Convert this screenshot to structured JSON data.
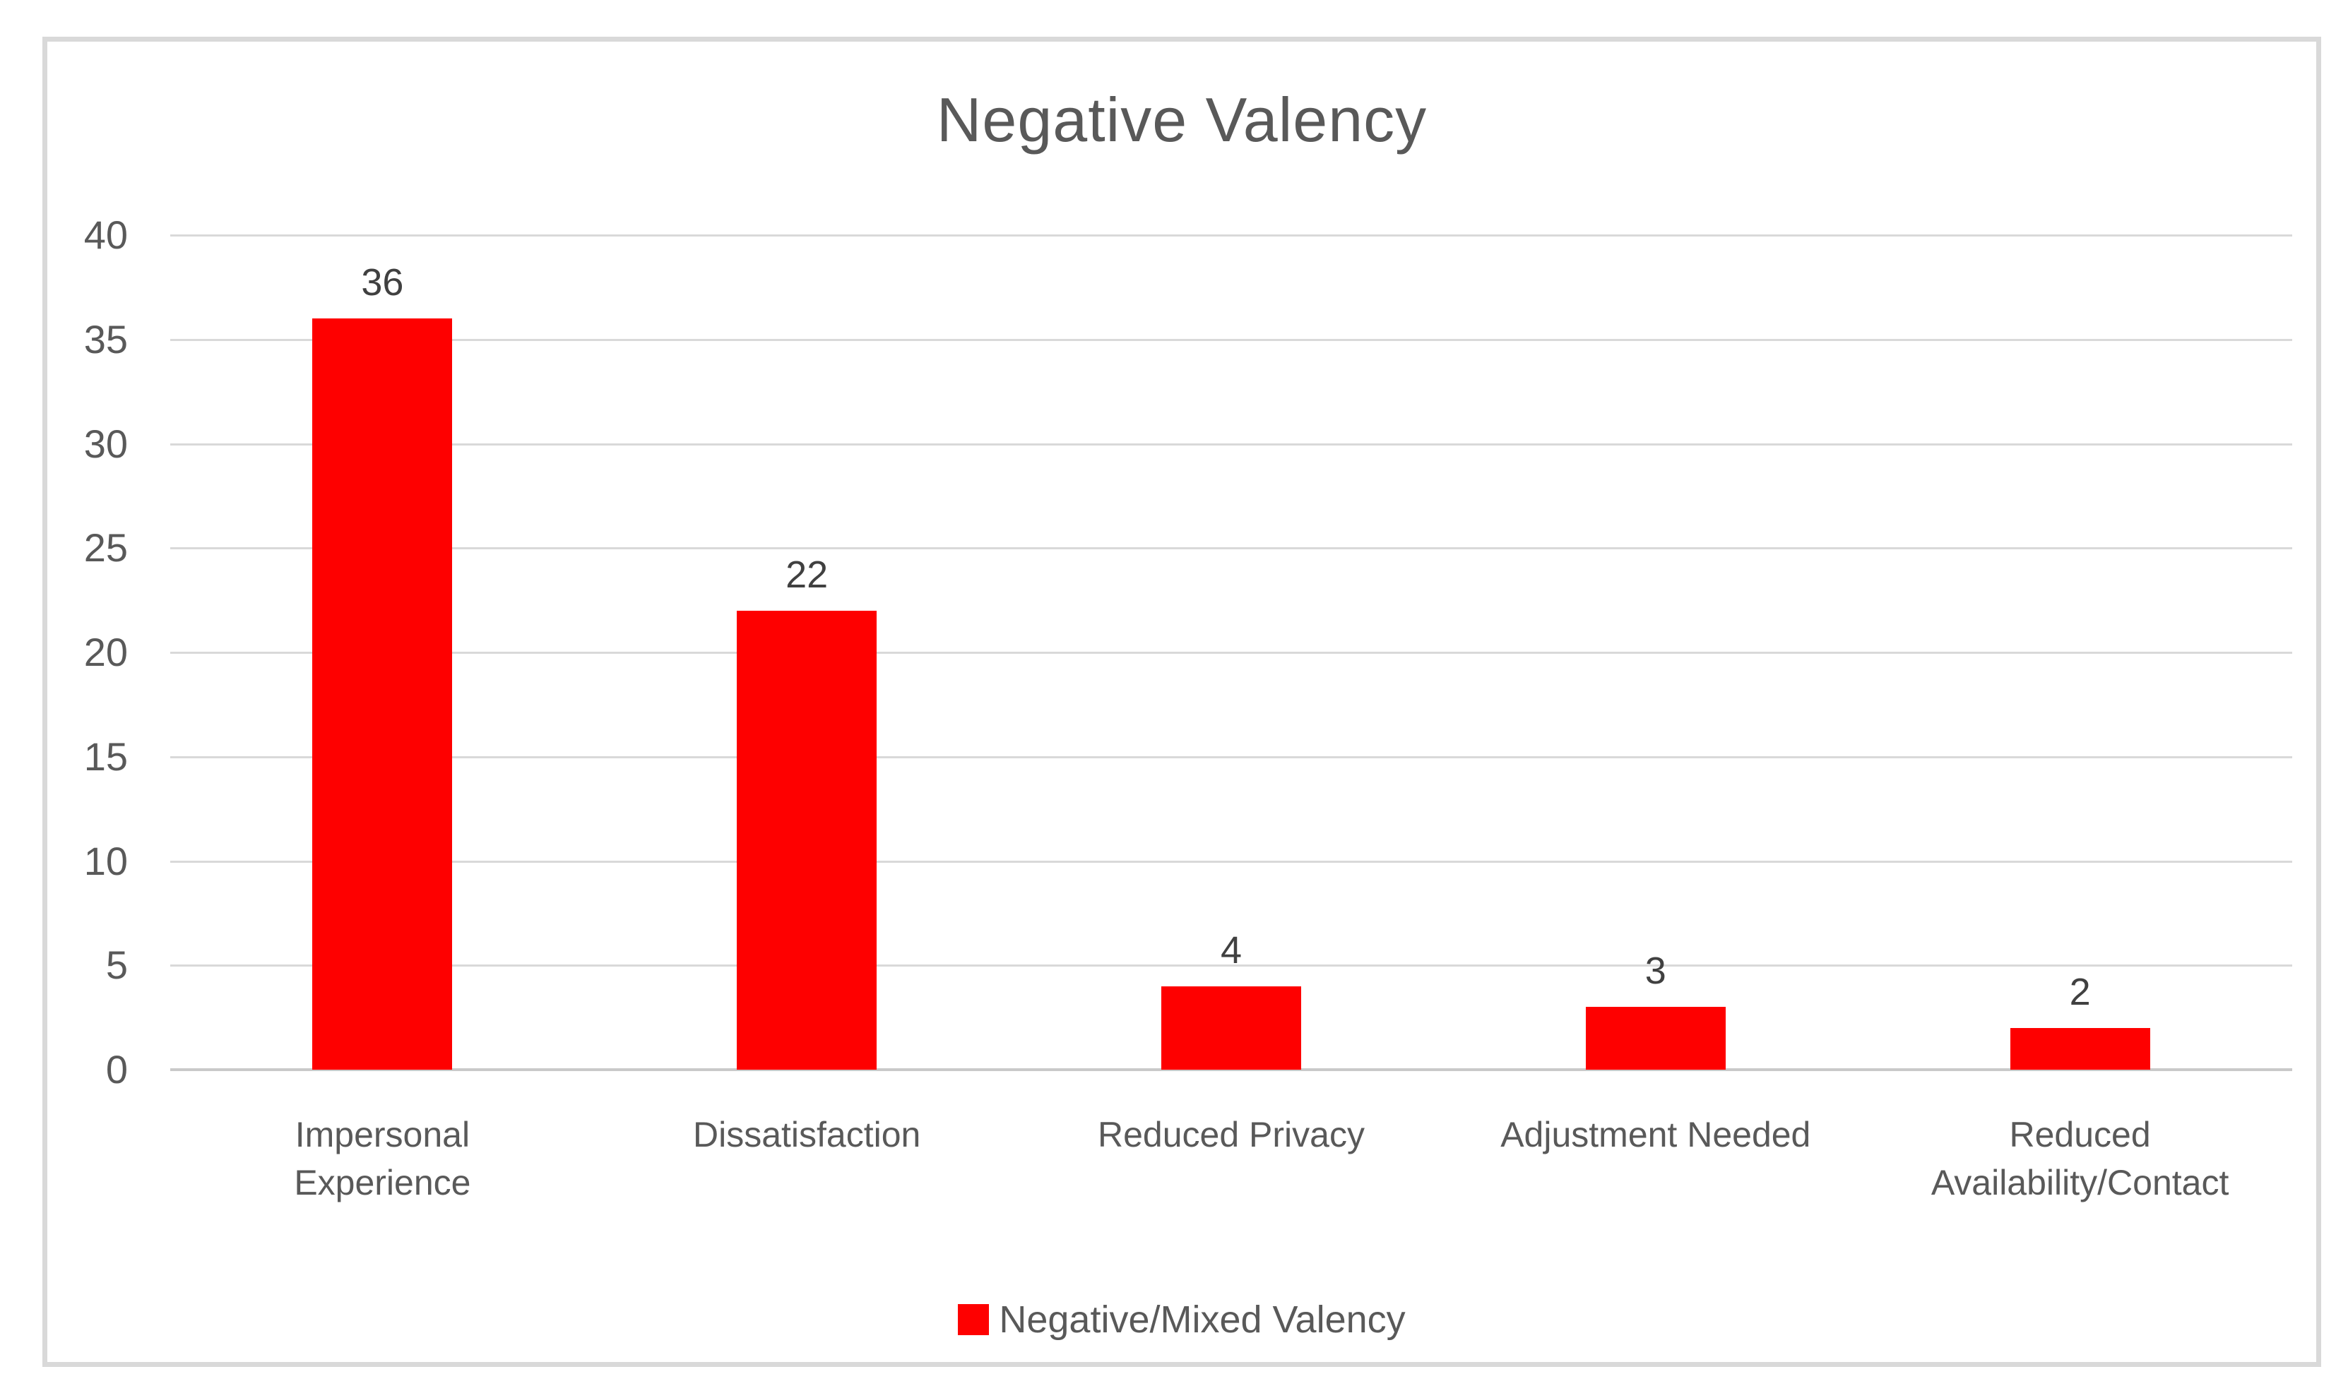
{
  "chart_data": {
    "type": "bar",
    "title": "Negative Valency",
    "categories": [
      "Impersonal\nExperience",
      "Dissatisfaction",
      "Reduced Privacy",
      "Adjustment Needed",
      "Reduced\nAvailability/Contact"
    ],
    "values": [
      36,
      22,
      4,
      3,
      2
    ],
    "series_name": "Negative/Mixed Valency",
    "ylim": [
      0,
      40
    ],
    "yticks": [
      0,
      5,
      10,
      15,
      20,
      25,
      30,
      35,
      40
    ],
    "grid": "horizontal",
    "legend_position": "bottom",
    "colors": {
      "bar": "#FE0000",
      "title_text": "#595959",
      "axis_text": "#595959",
      "data_label_text": "#404040",
      "gridline": "#D9D9D9",
      "baseline": "#C9C9C9",
      "frame_border": "#D9D9D9",
      "background": "#FFFFFF"
    }
  }
}
